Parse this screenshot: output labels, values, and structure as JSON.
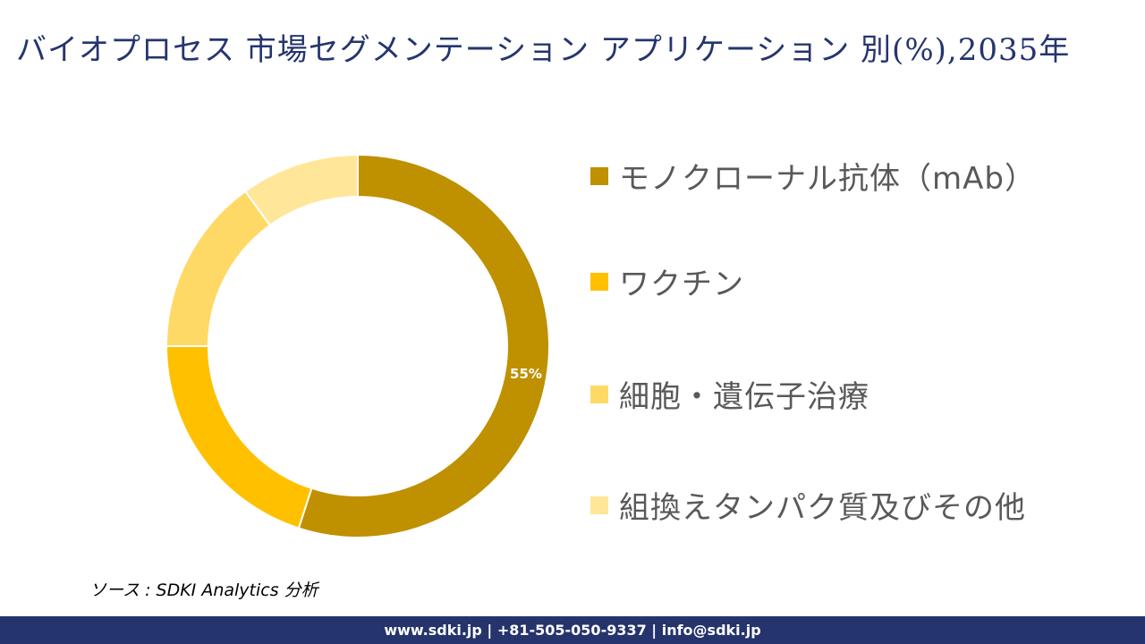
{
  "header": {
    "title": "バイオプロセス 市場セグメンテーション アプリケーション 別(%),2035年"
  },
  "chart_data": {
    "type": "pie",
    "subtype": "donut",
    "title": "バイオプロセス 市場セグメンテーション アプリケーション 別(%),2035年",
    "categories": [
      "モノクローナル抗体（mAb）",
      "ワクチン",
      "細胞・遺伝子治療",
      "組換えタンパク質及びその他"
    ],
    "values": [
      55,
      20,
      15,
      10
    ],
    "colors": [
      "#bf9000",
      "#ffc000",
      "#ffd966",
      "#ffe699"
    ],
    "data_labels": [
      "55%",
      "",
      "",
      ""
    ],
    "legend_position": "right",
    "start_angle_deg": 0,
    "direction": "clockwise"
  },
  "legend": {
    "items": [
      {
        "label": "モノクローナル抗体（mAb）",
        "color": "#bf9000"
      },
      {
        "label": "ワクチン",
        "color": "#ffc000"
      },
      {
        "label": "細胞・遺伝子治療",
        "color": "#ffd966"
      },
      {
        "label": "組換えタンパク質及びその他",
        "color": "#ffe699"
      }
    ]
  },
  "source": {
    "text": "ソース : SDKI Analytics  分析"
  },
  "footer": {
    "text": "www.sdki.jp | +81-505-050-9337 | info@sdki.jp",
    "background": "#25346c"
  }
}
